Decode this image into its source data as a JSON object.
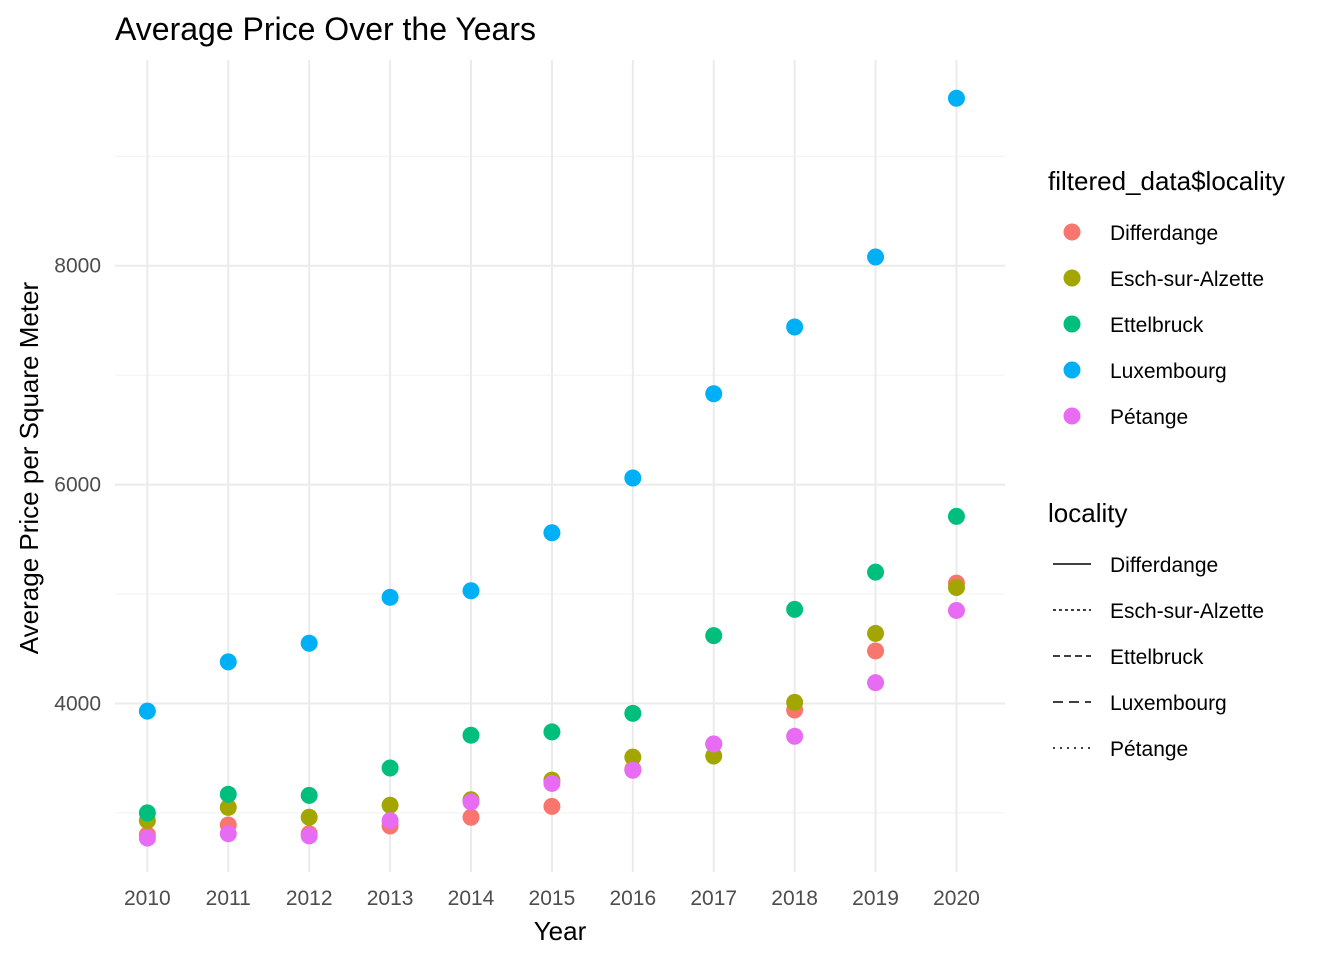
{
  "chart_data": {
    "type": "scatter",
    "title": "Average Price Over the Years",
    "xlabel": "Year",
    "ylabel": "Average Price per Square Meter",
    "x": [
      2010,
      2011,
      2012,
      2013,
      2014,
      2015,
      2016,
      2017,
      2018,
      2019,
      2020
    ],
    "x_ticks": [
      "2010",
      "2011",
      "2012",
      "2013",
      "2014",
      "2015",
      "2016",
      "2017",
      "2018",
      "2019",
      "2020"
    ],
    "y_ticks": [
      "4000",
      "6000",
      "8000"
    ],
    "xlim": [
      2009.6,
      2020.6
    ],
    "ylim": [
      2460,
      9880
    ],
    "grid": true,
    "legend_placement": "right",
    "color_legend_title": "filtered_data$locality",
    "linetype_legend_title": "locality",
    "series": [
      {
        "name": "Differdange",
        "color": "#F8766D",
        "linetype": "solid",
        "values": [
          2800,
          2890,
          2810,
          2880,
          2960,
          3060,
          3400,
          3630,
          3940,
          4480,
          5100
        ]
      },
      {
        "name": "Esch-sur-Alzette",
        "color": "#A3A500",
        "linetype": "dotted",
        "values": [
          2930,
          3050,
          2960,
          3070,
          3120,
          3300,
          3510,
          3520,
          4010,
          4640,
          5060
        ]
      },
      {
        "name": "Ettelbruck",
        "color": "#00BF7D",
        "linetype": "dashed",
        "values": [
          3000,
          3170,
          3160,
          3410,
          3710,
          3740,
          3910,
          4620,
          4860,
          5200,
          5710
        ]
      },
      {
        "name": "Luxembourg",
        "color": "#00B0F6",
        "linetype": "longdash",
        "values": [
          3930,
          4380,
          4550,
          4970,
          5030,
          5560,
          6060,
          6830,
          7440,
          8080,
          9530
        ]
      },
      {
        "name": "Pétange",
        "color": "#E76BF3",
        "linetype": "dotted-sparse",
        "values": [
          2770,
          2810,
          2790,
          2930,
          3100,
          3270,
          3390,
          3630,
          3700,
          4190,
          4850
        ]
      }
    ]
  }
}
